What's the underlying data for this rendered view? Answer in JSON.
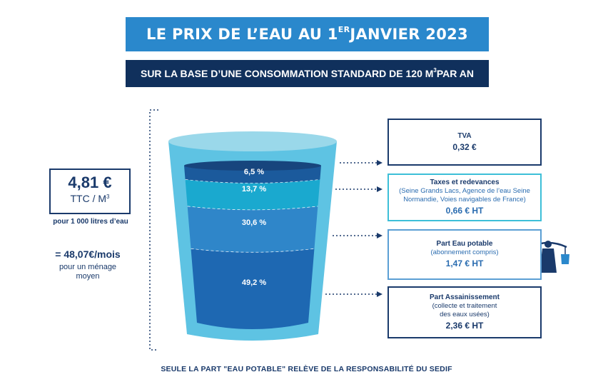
{
  "header": {
    "title_main": "LE PRIX DE L’EAU AU 1",
    "title_sup": "ER",
    "title_end": " JANVIER 2023",
    "subtitle_main": "SUR LA BASE D’UNE CONSOMMATION STANDARD DE 120 M",
    "subtitle_sup": "3",
    "subtitle_end": " PAR AN"
  },
  "price": {
    "value": "4,81 €",
    "unit": "TTC / M",
    "unit_sup": "3",
    "note": "pour 1 000 litres d’eau"
  },
  "monthly": {
    "value": "= 48,07€/mois",
    "note_line1": "pour un ménage",
    "note_line2": "moyen"
  },
  "glass_segments": [
    {
      "label": "6,5 %",
      "value": 6.5,
      "color": "#1b5a9c"
    },
    {
      "label": "13,7 %",
      "value": 13.7,
      "color": "#1aa9cf"
    },
    {
      "label": "30,6 %",
      "value": 30.6,
      "color": "#2f86c9"
    },
    {
      "label": "49,2 %",
      "value": 49.2,
      "color": "#1e68b2"
    }
  ],
  "boxes": {
    "tva": {
      "title": "TVA",
      "value": "0,32 €"
    },
    "taxes": {
      "title": "Taxes et redevances",
      "desc_line1": "(Seine Grands Lacs,  Agence de l’eau Seine",
      "desc_line2": "Normandie, Voies navigables de France)",
      "value": "0,66 € HT"
    },
    "eau": {
      "title": "Part Eau potable",
      "desc_line1": "(abonnement compris)",
      "value": "1,47 € HT"
    },
    "assain": {
      "title": "Part Assainissement",
      "desc_line1": "(collecte et traitement",
      "desc_line2": "des eaux usées)",
      "value": "2,36 € HT"
    }
  },
  "colors": {
    "glass_rim": "#9ad8ea",
    "glass_body": "#5ec3e3",
    "accent": "#2a88cc",
    "navy": "#10305c"
  },
  "icons": {
    "water_carrier": "water-carrier-icon"
  },
  "footer": {
    "text": "SEULE LA PART \"EAU POTABLE\" RELÈVE DE LA RESPONSABILITÉ DU SEDIF"
  }
}
